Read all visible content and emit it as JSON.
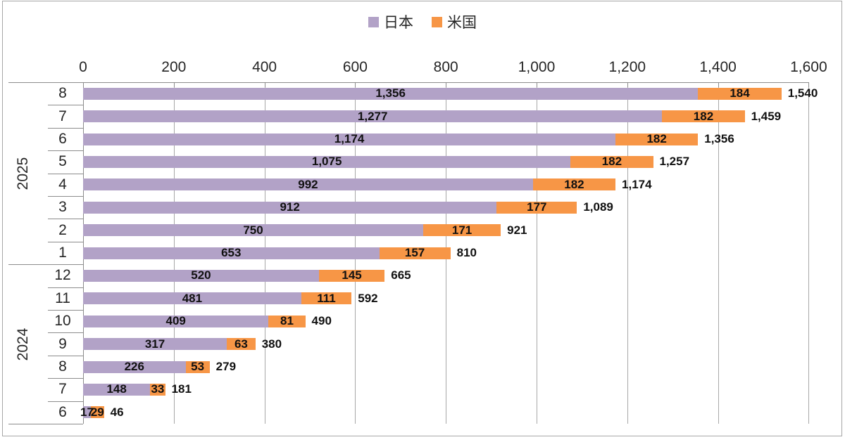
{
  "legend": {
    "items": [
      {
        "id": "japan",
        "label": "日本",
        "color": "#b2a2c7"
      },
      {
        "id": "us",
        "label": "米国",
        "color": "#f79646"
      }
    ]
  },
  "chart_data": {
    "type": "bar",
    "orientation": "horizontal",
    "stacked": true,
    "title": "",
    "legend_position": "top",
    "gridlines": true,
    "x_axis": {
      "position": "top",
      "min": 0,
      "max": 1600,
      "step": 200,
      "tick_labels": [
        "0",
        "200",
        "400",
        "600",
        "800",
        "1,000",
        "1,200",
        "1,400",
        "1,600"
      ]
    },
    "series": [
      {
        "name": "日本",
        "color": "#b2a2c7"
      },
      {
        "name": "米国",
        "color": "#f79646"
      }
    ],
    "groups": [
      {
        "year": "2025",
        "rows": [
          {
            "month": "8",
            "japan": 1356,
            "us": 184,
            "total": 1540,
            "japan_label": "1,356",
            "us_label": "184",
            "total_label": "1,540"
          },
          {
            "month": "7",
            "japan": 1277,
            "us": 182,
            "total": 1459,
            "japan_label": "1,277",
            "us_label": "182",
            "total_label": "1,459"
          },
          {
            "month": "6",
            "japan": 1174,
            "us": 182,
            "total": 1356,
            "japan_label": "1,174",
            "us_label": "182",
            "total_label": "1,356"
          },
          {
            "month": "5",
            "japan": 1075,
            "us": 182,
            "total": 1257,
            "japan_label": "1,075",
            "us_label": "182",
            "total_label": "1,257"
          },
          {
            "month": "4",
            "japan": 992,
            "us": 182,
            "total": 1174,
            "japan_label": "992",
            "us_label": "182",
            "total_label": "1,174"
          },
          {
            "month": "3",
            "japan": 912,
            "us": 177,
            "total": 1089,
            "japan_label": "912",
            "us_label": "177",
            "total_label": "1,089"
          },
          {
            "month": "2",
            "japan": 750,
            "us": 171,
            "total": 921,
            "japan_label": "750",
            "us_label": "171",
            "total_label": "921"
          },
          {
            "month": "1",
            "japan": 653,
            "us": 157,
            "total": 810,
            "japan_label": "653",
            "us_label": "157",
            "total_label": "810"
          }
        ]
      },
      {
        "year": "2024",
        "rows": [
          {
            "month": "12",
            "japan": 520,
            "us": 145,
            "total": 665,
            "japan_label": "520",
            "us_label": "145",
            "total_label": "665"
          },
          {
            "month": "11",
            "japan": 481,
            "us": 111,
            "total": 592,
            "japan_label": "481",
            "us_label": "111",
            "total_label": "592"
          },
          {
            "month": "10",
            "japan": 409,
            "us": 81,
            "total": 490,
            "japan_label": "409",
            "us_label": "81",
            "total_label": "490"
          },
          {
            "month": "9",
            "japan": 317,
            "us": 63,
            "total": 380,
            "japan_label": "317",
            "us_label": "63",
            "total_label": "380"
          },
          {
            "month": "8",
            "japan": 226,
            "us": 53,
            "total": 279,
            "japan_label": "226",
            "us_label": "53",
            "total_label": "279"
          },
          {
            "month": "7",
            "japan": 148,
            "us": 33,
            "total": 181,
            "japan_label": "148",
            "us_label": "33",
            "total_label": "181"
          },
          {
            "month": "6",
            "japan": 17,
            "us": 29,
            "total": 46,
            "japan_label": "17",
            "us_label": "29",
            "total_label": "46"
          }
        ]
      }
    ]
  }
}
